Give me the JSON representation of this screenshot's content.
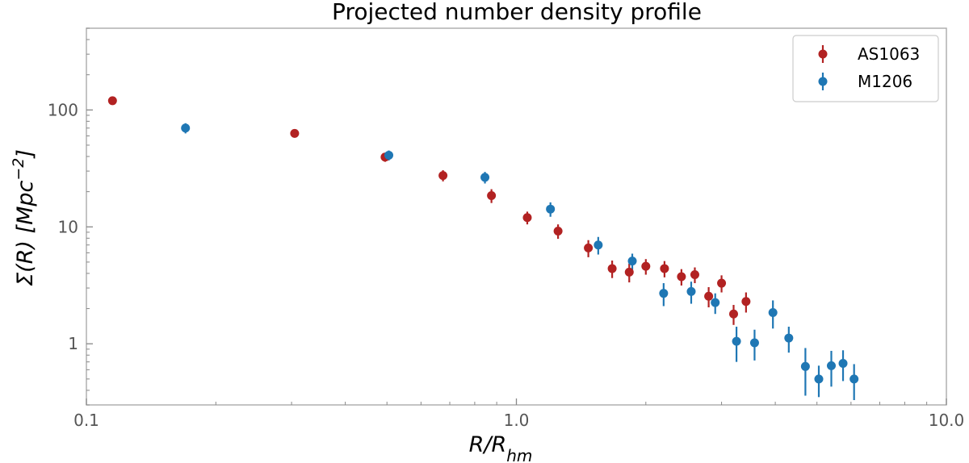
{
  "chart_data": {
    "type": "scatter",
    "title": "Projected number density profile",
    "xlabel": {
      "base": "R/R",
      "sub": "hm"
    },
    "ylabel": {
      "base": "Σ(R) [Mpc",
      "sup": "−2",
      "close": "]"
    },
    "xscale": "log",
    "yscale": "log",
    "xlim": [
      0.1,
      10.0
    ],
    "ylim": [
      0.3,
      500
    ],
    "x_ticks": [
      {
        "value": 0.1,
        "label": "0.1"
      },
      {
        "value": 1.0,
        "label": "1.0"
      },
      {
        "value": 10.0,
        "label": "10.0"
      }
    ],
    "y_ticks": [
      {
        "value": 1,
        "label": "1"
      },
      {
        "value": 10,
        "label": "10"
      },
      {
        "value": 100,
        "label": "100"
      }
    ],
    "grid": false,
    "legend_position": "top-right",
    "series": [
      {
        "name": "AS1063",
        "color": "#b22222",
        "points": [
          {
            "x": 0.115,
            "y": 120,
            "err": 8
          },
          {
            "x": 0.305,
            "y": 63,
            "err": 5
          },
          {
            "x": 0.495,
            "y": 39.5,
            "err": 3.5
          },
          {
            "x": 0.675,
            "y": 27.5,
            "err": 3
          },
          {
            "x": 0.875,
            "y": 18.5,
            "err": 2.5
          },
          {
            "x": 1.06,
            "y": 12,
            "err": 1.5
          },
          {
            "x": 1.25,
            "y": 9.2,
            "err": 1.3
          },
          {
            "x": 1.47,
            "y": 6.6,
            "err": 1.1
          },
          {
            "x": 1.67,
            "y": 4.4,
            "err": 0.75
          },
          {
            "x": 1.83,
            "y": 4.1,
            "err": 0.75
          },
          {
            "x": 2.0,
            "y": 4.6,
            "err": 0.7
          },
          {
            "x": 2.21,
            "y": 4.4,
            "err": 0.7
          },
          {
            "x": 2.42,
            "y": 3.75,
            "err": 0.6
          },
          {
            "x": 2.6,
            "y": 3.9,
            "err": 0.6
          },
          {
            "x": 2.8,
            "y": 2.55,
            "err": 0.5
          },
          {
            "x": 3.0,
            "y": 3.3,
            "err": 0.55
          },
          {
            "x": 3.2,
            "y": 1.8,
            "err": 0.35
          },
          {
            "x": 3.42,
            "y": 2.3,
            "err": 0.45
          }
        ]
      },
      {
        "name": "M1206",
        "color": "#1f77b4",
        "points": [
          {
            "x": 0.17,
            "y": 70,
            "err": 7
          },
          {
            "x": 0.505,
            "y": 41,
            "err": 4
          },
          {
            "x": 0.845,
            "y": 26.5,
            "err": 3
          },
          {
            "x": 1.2,
            "y": 14.2,
            "err": 2
          },
          {
            "x": 1.55,
            "y": 7.0,
            "err": 1.2
          },
          {
            "x": 1.86,
            "y": 5.1,
            "err": 0.8
          },
          {
            "x": 2.2,
            "y": 2.7,
            "err": 0.6
          },
          {
            "x": 2.55,
            "y": 2.8,
            "err": 0.6
          },
          {
            "x": 2.9,
            "y": 2.25,
            "err": 0.45
          },
          {
            "x": 3.25,
            "y": 1.05,
            "err": 0.35
          },
          {
            "x": 3.58,
            "y": 1.02,
            "err": 0.3
          },
          {
            "x": 3.95,
            "y": 1.85,
            "err": 0.5
          },
          {
            "x": 4.3,
            "y": 1.12,
            "err": 0.28
          },
          {
            "x": 4.7,
            "y": 0.64,
            "err": 0.28
          },
          {
            "x": 5.05,
            "y": 0.5,
            "err": 0.15
          },
          {
            "x": 5.4,
            "y": 0.65,
            "err": 0.22
          },
          {
            "x": 5.75,
            "y": 0.68,
            "err": 0.2
          },
          {
            "x": 6.1,
            "y": 0.5,
            "err": 0.17
          }
        ]
      }
    ]
  }
}
